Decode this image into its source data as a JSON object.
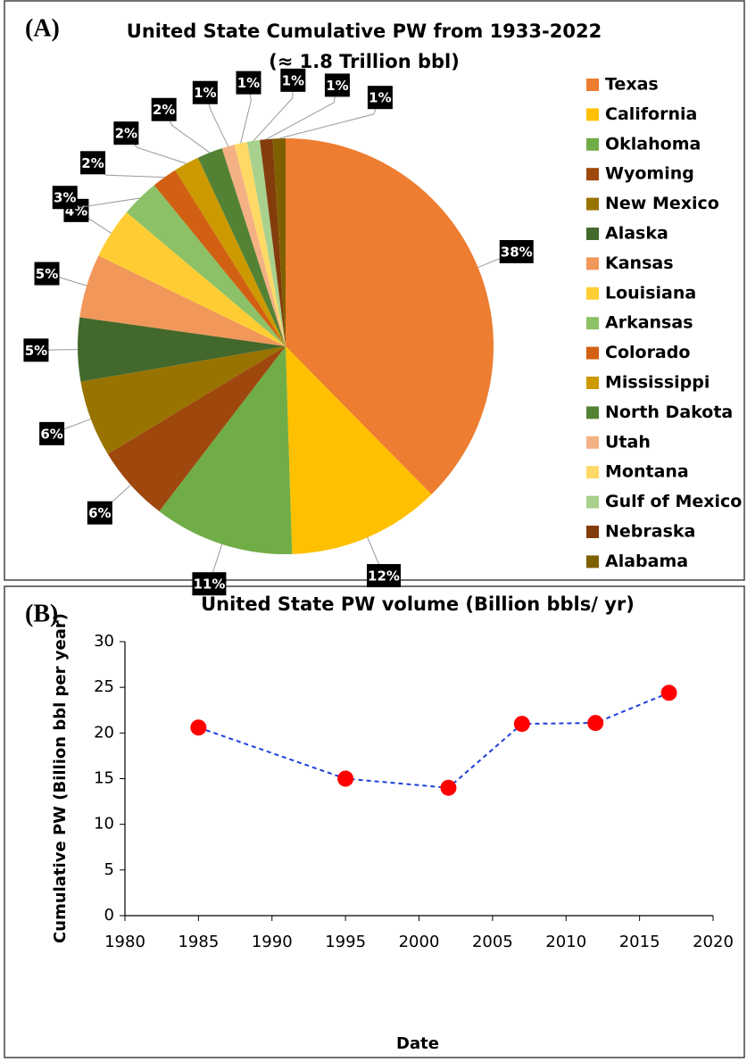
{
  "chart_data": [
    {
      "type": "pie",
      "panel_label": "(A)",
      "title": "United State  Cumulative PW from 1933-2022",
      "subtitle": "(≈ 1.8 Trillion bbl)",
      "categories": [
        "Texas",
        "California",
        "Oklahoma",
        "Wyoming",
        "New Mexico",
        "Alaska",
        "Kansas",
        "Louisiana",
        "Arkansas",
        "Colorado",
        "Mississippi",
        "North Dakota",
        "Utah",
        "Montana",
        "Gulf of Mexico",
        "Nebraska",
        "Alabama"
      ],
      "values": [
        38,
        12,
        11,
        6,
        6,
        5,
        5,
        4,
        3,
        2,
        2,
        2,
        1,
        1,
        1,
        1,
        1
      ],
      "value_labels": [
        "38%",
        "12%",
        "11%",
        "6%",
        "6%",
        "5%",
        "5%",
        "4%",
        "3%",
        "2%",
        "2%",
        "2%",
        "1%",
        "1%",
        "1%",
        "1%",
        "1%"
      ],
      "colors": [
        "#ED7D31",
        "#FFC000",
        "#70AD47",
        "#9E480E",
        "#997300",
        "#43682B",
        "#F1975A",
        "#FFCD33",
        "#8CC168",
        "#D26012",
        "#CC9A00",
        "#548235",
        "#F4B183",
        "#FFD966",
        "#A9D18E",
        "#843C0C",
        "#7F6000"
      ],
      "legend": "right"
    },
    {
      "type": "line",
      "panel_label": "(B)",
      "title": "United State PW volume (Billion bbls/ yr)",
      "x_label": "Date",
      "y_label": "Cumulative PW (Billion bbl per year)",
      "x": [
        1985,
        1995,
        2002,
        2007,
        2012,
        2017
      ],
      "values": [
        20.6,
        15,
        14,
        21,
        21.1,
        24.4
      ],
      "xlim": [
        1980,
        2020
      ],
      "xticks": [
        1980,
        1985,
        1990,
        1995,
        2000,
        2005,
        2010,
        2015,
        2020
      ],
      "ylim": [
        0,
        30
      ],
      "yticks": [
        0,
        5,
        10,
        15,
        20,
        25,
        30
      ],
      "line_color": "#1F3FDB",
      "marker_color": "#FF0000",
      "line_style": "dashed"
    }
  ]
}
